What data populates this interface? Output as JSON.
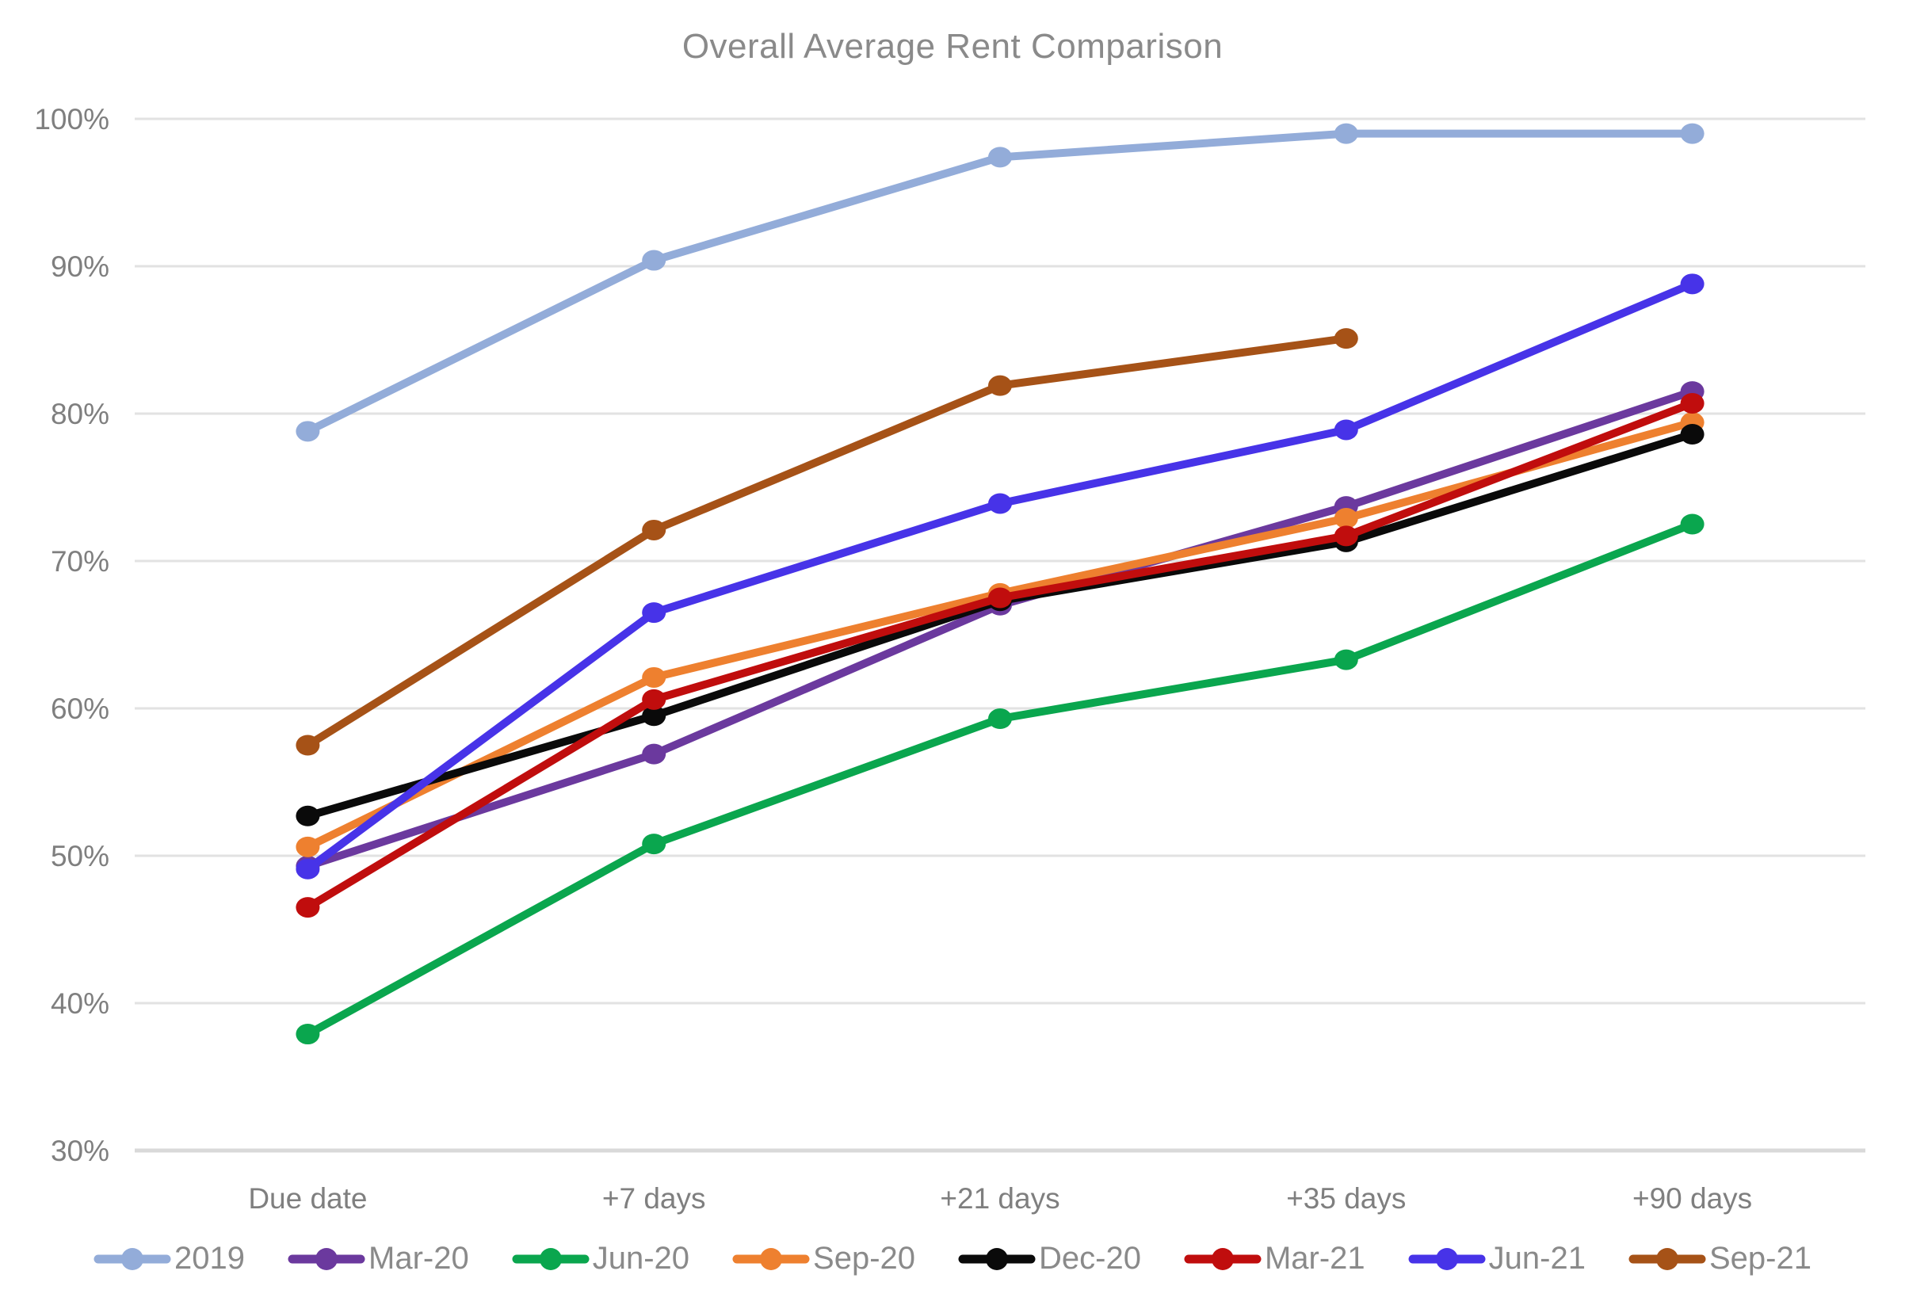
{
  "chart_data": {
    "type": "line",
    "title": "Overall Average Rent Comparison",
    "categories": [
      "Due date",
      "+7 days",
      "+21 days",
      "+35 days",
      "+90 days"
    ],
    "series": [
      {
        "name": "2019",
        "color": "#93ACD9",
        "values": [
          78.8,
          90.4,
          97.4,
          99.0,
          99.0
        ]
      },
      {
        "name": "Mar-20",
        "color": "#6B399E",
        "values": [
          49.3,
          56.9,
          67.0,
          73.7,
          81.5
        ]
      },
      {
        "name": "Jun-20",
        "color": "#0AA64E",
        "values": [
          37.9,
          50.8,
          59.3,
          63.3,
          72.5
        ]
      },
      {
        "name": "Sep-20",
        "color": "#EE802F",
        "values": [
          50.6,
          62.1,
          67.8,
          72.9,
          79.4
        ]
      },
      {
        "name": "Dec-20",
        "color": "#0A0A0A",
        "values": [
          52.7,
          59.5,
          67.3,
          71.3,
          78.6
        ]
      },
      {
        "name": "Mar-21",
        "color": "#C00D0D",
        "values": [
          46.5,
          60.6,
          67.5,
          71.7,
          80.7
        ]
      },
      {
        "name": "Jun-21",
        "color": "#4733E8",
        "values": [
          49.1,
          66.5,
          73.9,
          78.9,
          88.8
        ]
      },
      {
        "name": "Sep-21",
        "color": "#A65217",
        "values": [
          57.5,
          72.1,
          81.9,
          85.1,
          null
        ]
      }
    ],
    "y_axis": {
      "min": 30,
      "max": 100,
      "step": 10,
      "tick_labels": [
        "100%",
        "90%",
        "80%",
        "70%",
        "60%",
        "50%",
        "40%",
        "30%"
      ]
    },
    "grid": "horizontal",
    "legend_position": "bottom",
    "colors": {
      "title_text": "#8a8a8a",
      "axis_text": "#7f7f7f",
      "gridline": "#e2e2e2",
      "axis_line": "#d9d9d9",
      "background": "#ffffff"
    }
  }
}
